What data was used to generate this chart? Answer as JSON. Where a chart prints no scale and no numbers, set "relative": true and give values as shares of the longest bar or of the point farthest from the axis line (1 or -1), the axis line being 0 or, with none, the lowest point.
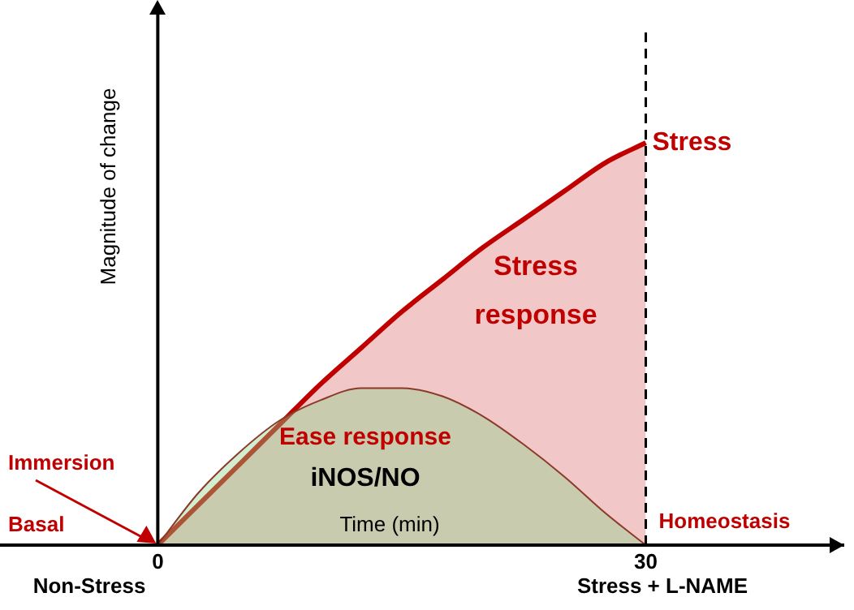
{
  "chart_data": {
    "type": "area",
    "relative": true,
    "xlabel": "Time (min)",
    "ylabel": "Magnitude of change",
    "x": [
      0,
      2.5,
      5,
      7.5,
      10,
      12.5,
      15,
      17.5,
      20,
      22.5,
      25,
      27.5,
      30
    ],
    "xlim": [
      -9.7,
      42.2
    ],
    "xticks": [
      0,
      30
    ],
    "series": [
      {
        "name": "Stress",
        "color": "#c00000",
        "values": [
          0,
          0.1,
          0.2,
          0.3,
          0.4,
          0.49,
          0.58,
          0.66,
          0.74,
          0.81,
          0.88,
          0.95,
          1
        ]
      },
      {
        "color": "#8fd18a",
        "values": [
          0,
          0.13,
          0.23,
          0.31,
          0.36,
          0.39,
          0.39,
          0.37,
          0.32,
          0.25,
          0.17,
          0.08,
          0
        ]
      }
    ],
    "ref_lines": [
      {
        "axis": "x",
        "value": 30,
        "label": "Homeostasis",
        "line_style": "dashed",
        "color": "#000000"
      }
    ],
    "annotations": [
      "Stress response",
      "Ease response",
      "iNOS/NO",
      "Immersion",
      "Basal",
      "Non-Stress",
      "Stress + L-NAME"
    ],
    "legend": false,
    "marker": "none"
  }
}
